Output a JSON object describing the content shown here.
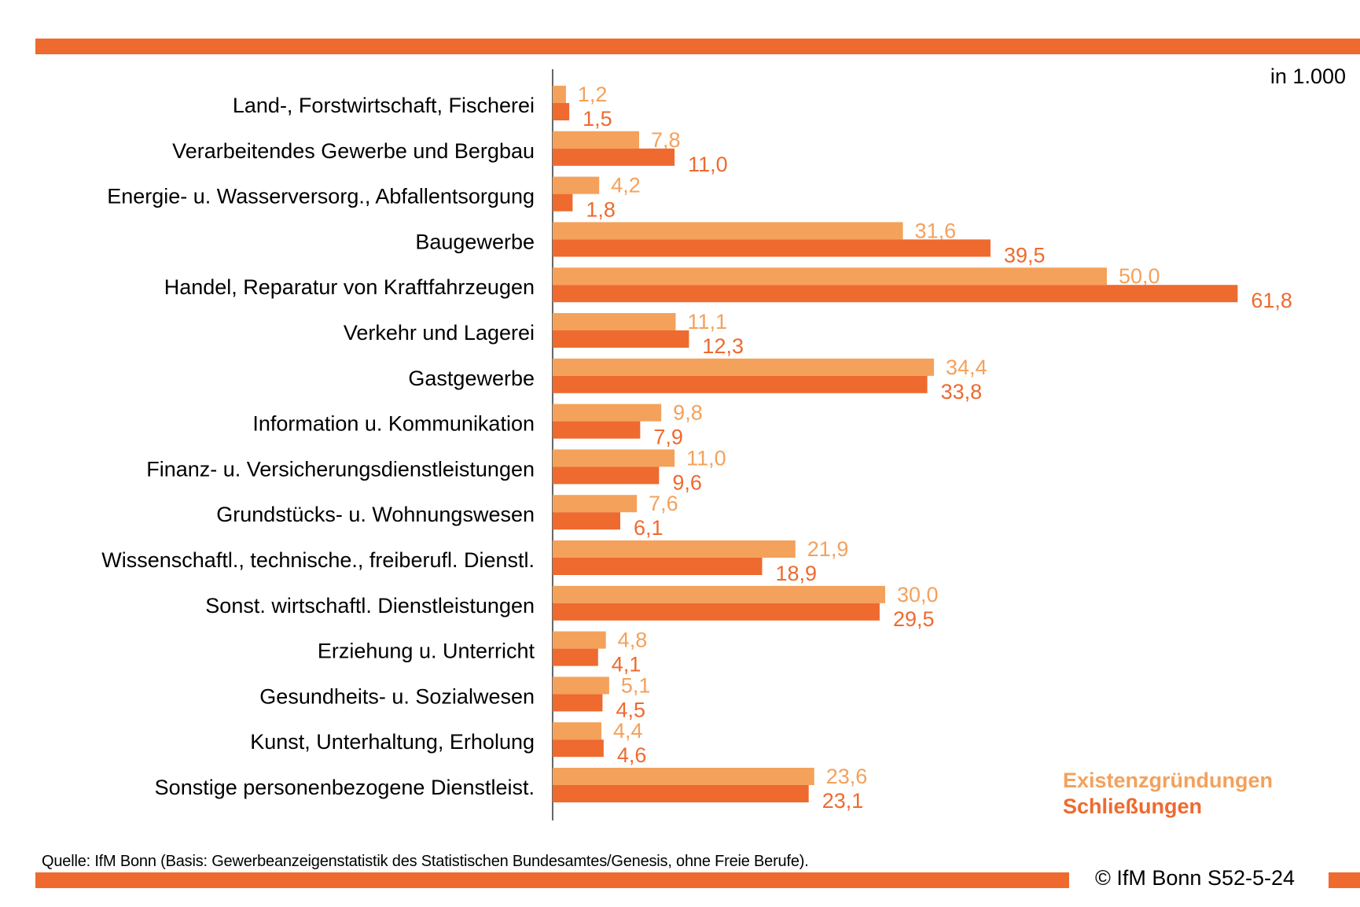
{
  "header": {
    "unit": "in 1.000"
  },
  "colors": {
    "gruendungen": "#f4a15b",
    "schliessungen": "#ee6a2f",
    "axis": "#666666"
  },
  "chart_data": {
    "type": "bar",
    "orientation": "horizontal",
    "unit": "in 1.000",
    "categories": [
      "Land-, Forstwirtschaft, Fischerei",
      "Verarbeitendes Gewerbe und Bergbau",
      "Energie- u. Wasserversorg., Abfallentsorgung",
      "Baugewerbe",
      "Handel, Reparatur von Kraftfahrzeugen",
      "Verkehr und Lagerei",
      "Gastgewerbe",
      "Information u. Kommunikation",
      "Finanz- u. Versicherungsdienstleistungen",
      "Grundstücks- u. Wohnungswesen",
      "Wissenschaftl., technische., freiberufl. Dienstl.",
      "Sonst. wirtschaftl. Dienstleistungen",
      "Erziehung u. Unterricht",
      "Gesundheits- u. Sozialwesen",
      "Kunst, Unterhaltung, Erholung",
      "Sonstige personenbezogene Dienstleist."
    ],
    "series": [
      {
        "name": "Existenzgründungen",
        "values": [
          1.2,
          7.8,
          4.2,
          31.6,
          50.0,
          11.1,
          34.4,
          9.8,
          11.0,
          7.6,
          21.9,
          30.0,
          4.8,
          5.1,
          4.4,
          23.6
        ],
        "labels": [
          "1,2",
          "7,8",
          "4,2",
          "31,6",
          "50,0",
          "11,1",
          "34,4",
          "9,8",
          "11,0",
          "7,6",
          "21,9",
          "30,0",
          "4,8",
          "5,1",
          "4,4",
          "23,6"
        ]
      },
      {
        "name": "Schließungen",
        "values": [
          1.5,
          11.0,
          1.8,
          39.5,
          61.8,
          12.3,
          33.8,
          7.9,
          9.6,
          6.1,
          18.9,
          29.5,
          4.1,
          4.5,
          4.6,
          23.1
        ],
        "labels": [
          "1,5",
          "11,0",
          "1,8",
          "39,5",
          "61,8",
          "12,3",
          "33,8",
          "7,9",
          "9,6",
          "6,1",
          "18,9",
          "29,5",
          "4,1",
          "4,5",
          "4,6",
          "23,1"
        ]
      }
    ],
    "legend": [
      "Existenzgründungen",
      "Schließungen"
    ],
    "legend_position": "bottom-right"
  },
  "footer": {
    "source": "Quelle: IfM Bonn (Basis: Gewerbeanzeigenstatistik des Statistischen Bundesamtes/Genesis, ohne Freie Berufe).",
    "copyright": "© IfM Bonn S52-5-24"
  }
}
